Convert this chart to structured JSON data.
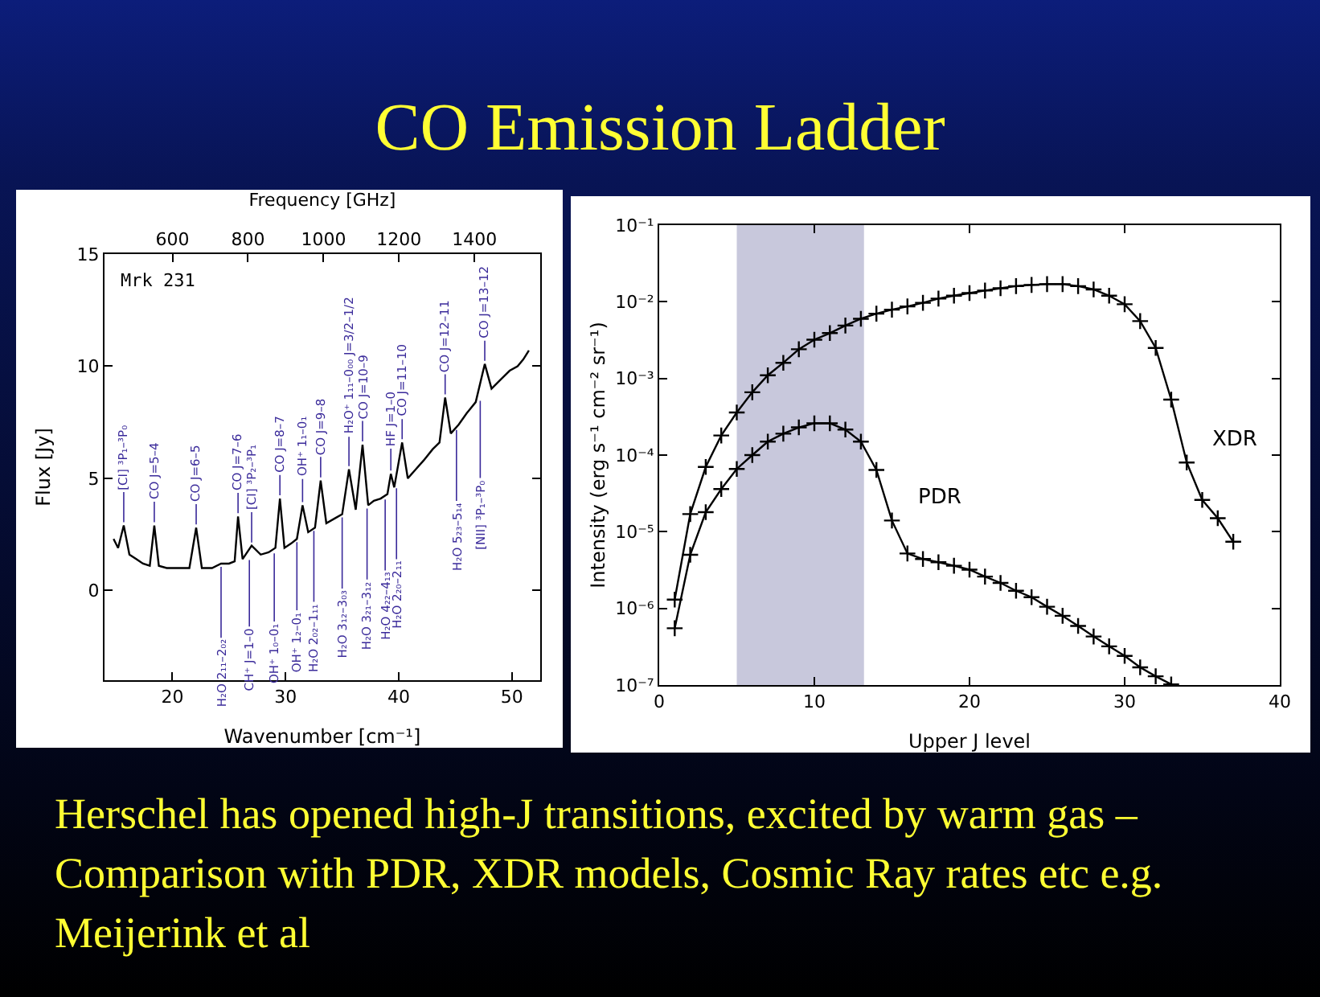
{
  "chart_data": [
    {
      "type": "other",
      "title": "CO Emission Ladder"
    },
    {
      "type": "line",
      "xlabel": "Wavenumber [cm⁻¹]",
      "ylabel": "Flux [Jy]",
      "x2label": "Frequency [GHz]",
      "xlim": [
        14,
        52.5
      ],
      "xticks": [
        20,
        30,
        40,
        50
      ],
      "ylim": [
        -4,
        15
      ],
      "yticks": [
        0,
        5,
        10,
        15
      ],
      "x2lim": [
        420,
        1574
      ],
      "x2ticks": [
        600,
        800,
        1000,
        1200,
        1400
      ],
      "series": [
        {
          "color": "#000000",
          "x": [
            14.8,
            15.2,
            15.7,
            16.2,
            16.8,
            17.4,
            18.0,
            18.4,
            18.8,
            19.5,
            20.5,
            21.5,
            22.1,
            22.6,
            23.5,
            24.3,
            25.0,
            25.5,
            25.8,
            26.2,
            27.0,
            27.8,
            28.5,
            29.1,
            29.5,
            29.9,
            30.5,
            31.0,
            31.5,
            32.0,
            32.6,
            33.1,
            33.6,
            34.3,
            35.0,
            35.6,
            36.2,
            36.8,
            37.3,
            37.8,
            38.4,
            39.0,
            39.3,
            39.6,
            40.3,
            40.8,
            41.5,
            42.2,
            43.0,
            43.6,
            44.1,
            44.6,
            45.3,
            46.0,
            46.8,
            47.6,
            48.2,
            49.0,
            49.8,
            50.5,
            51.0,
            51.5
          ],
          "values": [
            2.3,
            1.9,
            2.9,
            1.6,
            1.4,
            1.2,
            1.1,
            2.9,
            1.1,
            1.0,
            1.0,
            1.0,
            2.8,
            1.0,
            1.0,
            1.2,
            1.2,
            1.3,
            3.3,
            1.4,
            2.0,
            1.6,
            1.7,
            1.9,
            4.1,
            1.9,
            2.1,
            2.3,
            3.8,
            2.6,
            2.8,
            4.9,
            3.0,
            3.2,
            3.4,
            5.4,
            3.6,
            6.5,
            3.8,
            4.0,
            4.1,
            4.3,
            5.2,
            4.6,
            6.6,
            5.0,
            5.4,
            5.8,
            6.3,
            6.6,
            8.6,
            7.0,
            7.4,
            7.9,
            8.4,
            10.1,
            9.0,
            9.4,
            9.8,
            10.0,
            10.3,
            10.7
          ]
        }
      ],
      "annotations": [
        "Mrk 231",
        {
          "text": "[CI] ³P₁–³P₀",
          "x": 15.7,
          "y": 2.9
        },
        {
          "text": "CO J=5–4",
          "x": 18.4,
          "y": 2.9
        },
        {
          "text": "CO J=6–5",
          "x": 22.1,
          "y": 2.8
        },
        {
          "text": "CO J=7–6",
          "x": 25.8,
          "y": 3.3
        },
        {
          "text": "[CI] ³P₂–³P₁",
          "x": 27.0,
          "y": 2.0
        },
        {
          "text": "CO J=8–7",
          "x": 29.5,
          "y": 4.1
        },
        {
          "text": "OH⁺ 1₁–0₁",
          "x": 31.5,
          "y": 3.8
        },
        {
          "text": "CO J=9–8",
          "x": 33.1,
          "y": 4.9
        },
        {
          "text": "H₂O⁺ 1₁₁–0₀₀ J=3/2–1/2",
          "x": 35.6,
          "y": 5.4
        },
        {
          "text": "CO J=10–9",
          "x": 36.8,
          "y": 6.5
        },
        {
          "text": "HF J=1–0",
          "x": 39.3,
          "y": 5.2
        },
        {
          "text": "CO J=11–10",
          "x": 40.3,
          "y": 6.6
        },
        {
          "text": "CO J=12–11",
          "x": 44.1,
          "y": 8.6
        },
        {
          "text": "CO J=13–12",
          "x": 47.6,
          "y": 10.1
        },
        {
          "text": "H₂O 2₁₁–2₀₂",
          "x": 24.3,
          "y": 1.2
        },
        {
          "text": "CH⁺ J=1–0",
          "x": 26.8,
          "y": 1.5
        },
        {
          "text": "OH⁺ 1₀–0₁",
          "x": 29.0,
          "y": 1.8
        },
        {
          "text": "OH⁺ 1₂–0₁",
          "x": 31.0,
          "y": 2.3
        },
        {
          "text": "H₂O 2₀₂–1₁₁",
          "x": 32.5,
          "y": 2.8
        },
        {
          "text": "H₂O 3₁₂–3₀₃",
          "x": 35.0,
          "y": 3.4
        },
        {
          "text": "H₂O 3₂₁–3₁₂",
          "x": 37.2,
          "y": 3.8
        },
        {
          "text": "H₂O 4₂₂–4₁₃",
          "x": 38.8,
          "y": 4.2
        },
        {
          "text": "H₂O 2₂₀–2₁₁",
          "x": 39.8,
          "y": 4.7
        },
        {
          "text": "H₂O 5₂₃–5₁₄",
          "x": 45.1,
          "y": 7.3
        },
        {
          "text": "[NII] ³P₁–³P₀",
          "x": 47.2,
          "y": 8.6
        }
      ]
    },
    {
      "type": "line",
      "xlabel": "Upper J level",
      "ylabel": "Intensity (erg s⁻¹ cm⁻² sr⁻¹)",
      "log": "y",
      "marker": "cross",
      "line_style": "solid",
      "xlim": [
        0,
        40
      ],
      "xticks": [
        0,
        10,
        20,
        30,
        40
      ],
      "ylim": [
        1e-07,
        0.1
      ],
      "yticks": [
        {
          "value": 1e-07,
          "label": "10⁻⁷"
        },
        {
          "value": 1e-06,
          "label": "10⁻⁶"
        },
        {
          "value": 1e-05,
          "label": "10⁻⁵"
        },
        {
          "value": 0.0001,
          "label": "10⁻⁴"
        },
        {
          "value": 0.001,
          "label": "10⁻³"
        },
        {
          "value": 0.01,
          "label": "10⁻²"
        },
        {
          "value": 0.1,
          "label": "10⁻¹"
        }
      ],
      "bands": [
        {
          "axis": "x",
          "from": 5,
          "to": 13.2,
          "color": "#c8c8dc"
        }
      ],
      "series": [
        {
          "name": "XDR",
          "color": "#000000",
          "x": [
            1,
            2,
            3,
            4,
            5,
            6,
            7,
            8,
            9,
            10,
            11,
            12,
            13,
            14,
            15,
            16,
            17,
            18,
            19,
            20,
            21,
            22,
            23,
            24,
            25,
            26,
            27,
            28,
            29,
            30,
            31,
            32,
            33,
            34,
            35,
            36,
            37
          ],
          "values": [
            1.3e-06,
            1.7e-05,
            7e-05,
            0.00018,
            0.00036,
            0.00066,
            0.0011,
            0.0016,
            0.0024,
            0.0032,
            0.0039,
            0.0049,
            0.006,
            0.007,
            0.0079,
            0.0087,
            0.0097,
            0.011,
            0.012,
            0.013,
            0.014,
            0.015,
            0.016,
            0.0166,
            0.017,
            0.017,
            0.016,
            0.0145,
            0.012,
            0.0093,
            0.0056,
            0.0025,
            0.00053,
            8e-05,
            2.6e-05,
            1.5e-05,
            7.4e-06
          ]
        },
        {
          "name": "PDR",
          "color": "#000000",
          "x": [
            1,
            2,
            3,
            4,
            5,
            6,
            7,
            8,
            9,
            10,
            11,
            12,
            13,
            14,
            15,
            16,
            17,
            18,
            19,
            20,
            21,
            22,
            23,
            24,
            25,
            26,
            27,
            28,
            29,
            30,
            31,
            32,
            33
          ],
          "values": [
            5.5e-07,
            5e-06,
            1.8e-05,
            3.6e-05,
            6.6e-05,
            0.0001,
            0.00015,
            0.00019,
            0.00023,
            0.00026,
            0.00026,
            0.000215,
            0.00015,
            6.4e-05,
            1.4e-05,
            5.2e-06,
            4.4e-06,
            4e-06,
            3.6e-06,
            3.2e-06,
            2.6e-06,
            2.15e-06,
            1.7e-06,
            1.4e-06,
            1.05e-06,
            8e-07,
            5.9e-07,
            4.3e-07,
            3.2e-07,
            2.4e-07,
            1.7e-07,
            1.3e-07,
            1.02e-07
          ]
        }
      ]
    },
    {
      "type": "other",
      "annotations": [
        "Herschel has opened high-J transitions, excited by warm gas – Comparison with PDR, XDR models, Cosmic Ray rates etc  e.g. Meijerink et al"
      ]
    }
  ]
}
